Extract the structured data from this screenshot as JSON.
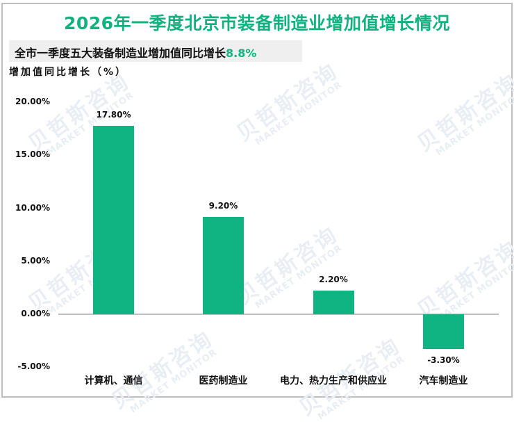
{
  "title": "2026年一季度北京市装备制造业增加值增长情况",
  "subtitle": {
    "text": "全市一季度五大装备制造业增加值同比增长",
    "highlight": "8.8%"
  },
  "watermark": {
    "cn": "贝哲斯咨询",
    "en": "MARKET MONITOR"
  },
  "colors": {
    "title": "#12b27e",
    "bar": "#10b482",
    "highlight": "#12b27e",
    "border": "#bfbfbf",
    "subtitle_bg": "#efefef"
  },
  "chart_data": {
    "type": "bar",
    "title": "2026年一季度北京市装备制造业增加值增长情况",
    "subtitle": "全市一季度五大装备制造业增加值同比增长8.8%",
    "xlabel": "",
    "ylabel": "增加值同比增长（%）",
    "categories": [
      "计算机、通信",
      "医药制造业",
      "电力、热力生产和供应业",
      "汽车制造业"
    ],
    "values": [
      17.8,
      9.2,
      2.2,
      -3.3
    ],
    "value_labels": [
      "17.80%",
      "9.20%",
      "2.20%",
      "-3.30%"
    ],
    "ylim": [
      -5,
      20
    ],
    "yticks": [
      -5,
      0,
      5,
      10,
      15,
      20
    ],
    "ytick_labels": [
      "-5.00%",
      "0.00%",
      "5.00%",
      "10.00%",
      "15.00%",
      "20.00%"
    ],
    "grid": false,
    "legend": "none"
  }
}
